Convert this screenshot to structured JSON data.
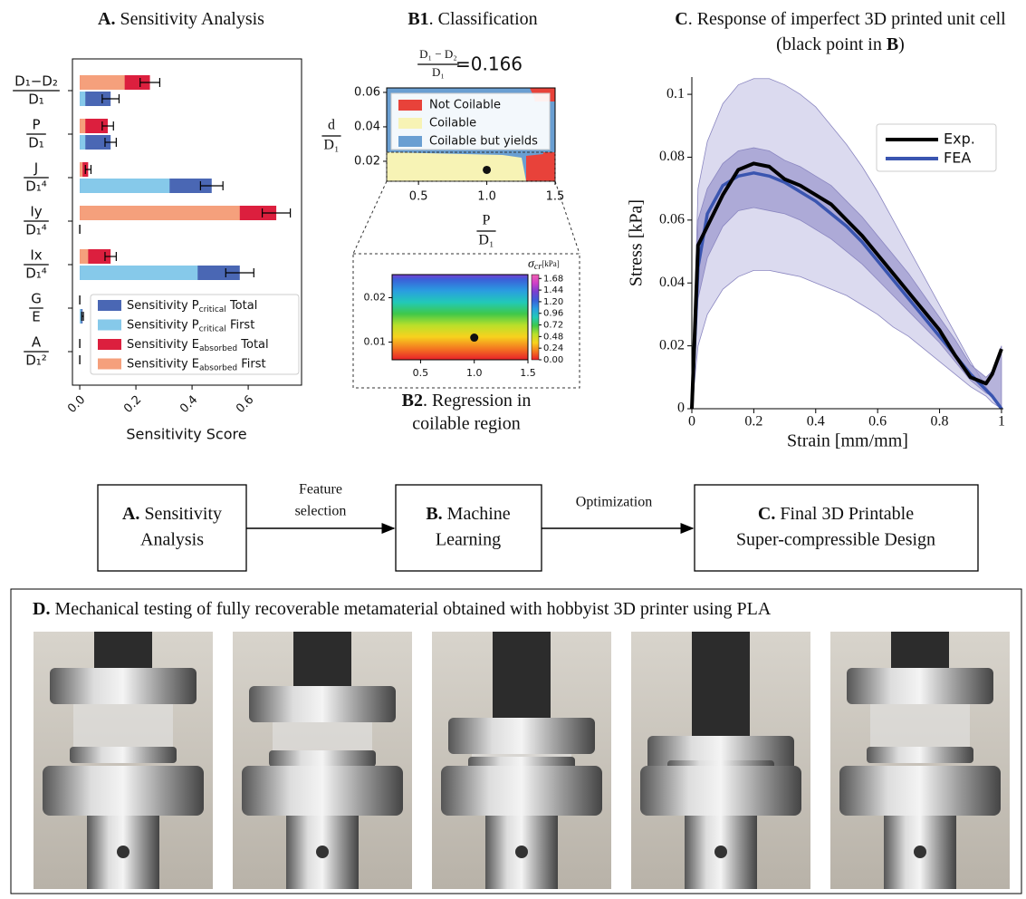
{
  "chart_data": [
    {
      "type": "hbar_overlay",
      "title_label": "A.",
      "title": "Sensitivity Analysis",
      "categories": [
        {
          "num": "D₁−D₂",
          "den": "D₁"
        },
        {
          "num": "P",
          "den": "D₁"
        },
        {
          "num": "J",
          "den": "D₁⁴"
        },
        {
          "num": "Iy",
          "den": "D₁⁴"
        },
        {
          "num": "Ix",
          "den": "D₁⁴"
        },
        {
          "num": "G",
          "den": "E"
        },
        {
          "num": "A",
          "den": "D₁²"
        }
      ],
      "series": [
        {
          "name": [
            "Sensitivity P",
            "critical",
            " Total"
          ],
          "color": "#4a67b4",
          "group": "P",
          "values": [
            0.11,
            0.11,
            0.47,
            0.0,
            0.57,
            0.01,
            0.0
          ],
          "errors": [
            0.03,
            0.02,
            0.04,
            0.0,
            0.05,
            0.003,
            0.0
          ]
        },
        {
          "name": [
            "Sensitivity P",
            "critical",
            " First"
          ],
          "color": "#86c9ea",
          "group": "P",
          "values": [
            0.02,
            0.02,
            0.32,
            0.0,
            0.42,
            0.005,
            0.0
          ]
        },
        {
          "name": [
            "Sensitivity E",
            "absorbed",
            " Total"
          ],
          "color": "#dc1f3e",
          "group": "E",
          "values": [
            0.25,
            0.1,
            0.03,
            0.7,
            0.11,
            0.0,
            0.0
          ],
          "errors": [
            0.035,
            0.02,
            0.01,
            0.05,
            0.02,
            0.0,
            0.0
          ]
        },
        {
          "name": [
            "Sensitivity E",
            "absorbed",
            " First"
          ],
          "color": "#f5a07c",
          "group": "E",
          "values": [
            0.16,
            0.02,
            0.01,
            0.57,
            0.03,
            0.0,
            0.0
          ]
        }
      ],
      "xlabel": "Sensitivity Score",
      "xlim": [
        -0.026,
        0.79
      ],
      "xticks": [
        {
          "value": 0,
          "label": "0.0"
        },
        0.2,
        0.4,
        0.6
      ]
    },
    {
      "type": "region_map",
      "title_label": "B1",
      "title": ". Classification",
      "formula": {
        "num": "D₁ − D₂",
        "den": "D₁",
        "rhs": "=0.166"
      },
      "xlabel": {
        "num": "P",
        "den": "D₁"
      },
      "ylabel": {
        "num": "d",
        "den": "D₁"
      },
      "xlim": [
        0.267,
        1.5
      ],
      "ylim": [
        0.0084,
        0.0626
      ],
      "xticks": [
        0.5,
        {
          "value": 1,
          "label": "1.0"
        },
        1.5
      ],
      "yticks": [
        0.02,
        0.04,
        0.06
      ],
      "legend": [
        {
          "name": "Not Coilable",
          "color": "#e8423a"
        },
        {
          "name": "Coilable",
          "color": "#f7f3b5"
        },
        {
          "name": "Coilable but yields",
          "color": "#6a9fd2"
        }
      ],
      "point": {
        "x": 1.0,
        "y": 0.015
      }
    },
    {
      "type": "heatmap",
      "caption_label": "B2",
      "caption": ". Regression in",
      "caption2": "coilable region",
      "xlim": [
        0.235,
        1.5
      ],
      "ylim": [
        0.006,
        0.0252
      ],
      "xticks": [
        0.5,
        {
          "value": 1,
          "label": "1.0"
        },
        1.5
      ],
      "yticks": [
        0.01,
        0.02
      ],
      "point": {
        "x": 1.0,
        "y": 0.011
      },
      "colorbar": {
        "title": "σ",
        "title_sub": "cr",
        "unit": "[kPa]",
        "lim": [
          0,
          1.76
        ],
        "ticks": [
          {
            "value": 0,
            "label": "0.00"
          },
          {
            "value": 0.24,
            "label": "0.24"
          },
          {
            "value": 0.48,
            "label": "0.48"
          },
          {
            "value": 0.72,
            "label": "0.72"
          },
          {
            "value": 0.96,
            "label": "0.96"
          },
          {
            "value": 1.2,
            "label": "1.20"
          },
          {
            "value": 1.44,
            "label": "1.44"
          },
          {
            "value": 1.68,
            "label": "1.68"
          }
        ],
        "colors": [
          "#e8202a",
          "#f47a20",
          "#f7d21e",
          "#b9e02a",
          "#3fc84a",
          "#22c9b8",
          "#2a9de0",
          "#3b5fd8",
          "#7a3fd0",
          "#d040c8",
          "#f060b0"
        ]
      }
    },
    {
      "type": "line",
      "title_label": "C",
      "title": ". Response of imperfect 3D printed unit cell",
      "title2": [
        "(black point in ",
        "B",
        ")"
      ],
      "xlabel": "Strain [mm/mm]",
      "ylabel": "Stress [kPa]",
      "xlim": [
        0,
        1.006
      ],
      "ylim": [
        0,
        0.1055
      ],
      "xticks": [
        0,
        0.2,
        0.4,
        0.6,
        0.8,
        1
      ],
      "yticks": [
        0,
        0.02,
        0.04,
        0.06,
        0.08,
        0.1
      ],
      "x": [
        0,
        0.02,
        0.05,
        0.1,
        0.15,
        0.2,
        0.25,
        0.3,
        0.35,
        0.4,
        0.45,
        0.5,
        0.55,
        0.6,
        0.65,
        0.7,
        0.75,
        0.8,
        0.85,
        0.9,
        0.95,
        0.97,
        1.0
      ],
      "bands": [
        {
          "color": "#cfcdea",
          "upper": [
            0,
            0.07,
            0.085,
            0.097,
            0.103,
            0.105,
            0.105,
            0.103,
            0.1,
            0.096,
            0.09,
            0.084,
            0.077,
            0.069,
            0.06,
            0.051,
            0.042,
            0.033,
            0.024,
            0.015,
            0.007,
            0.004,
            0
          ],
          "lower": [
            0,
            0.02,
            0.03,
            0.038,
            0.042,
            0.044,
            0.044,
            0.043,
            0.042,
            0.04,
            0.038,
            0.036,
            0.033,
            0.03,
            0.026,
            0.023,
            0.019,
            0.015,
            0.011,
            0.007,
            0.004,
            0.002,
            0
          ]
        },
        {
          "color": "#9d99cf",
          "upper": [
            0,
            0.06,
            0.07,
            0.078,
            0.082,
            0.083,
            0.082,
            0.079,
            0.077,
            0.074,
            0.071,
            0.066,
            0.061,
            0.055,
            0.049,
            0.043,
            0.036,
            0.029,
            0.022,
            0.014,
            0.01,
            0.012,
            0.02
          ],
          "lower": [
            0,
            0.035,
            0.048,
            0.058,
            0.063,
            0.064,
            0.063,
            0.062,
            0.06,
            0.057,
            0.054,
            0.05,
            0.046,
            0.041,
            0.036,
            0.031,
            0.026,
            0.021,
            0.015,
            0.009,
            0.005,
            0.004,
            0
          ]
        }
      ],
      "series": [
        {
          "name": "Exp.",
          "color": "#000000",
          "values": [
            0,
            0.052,
            0.058,
            0.068,
            0.076,
            0.078,
            0.077,
            0.073,
            0.071,
            0.068,
            0.065,
            0.06,
            0.055,
            0.049,
            0.043,
            0.037,
            0.031,
            0.025,
            0.017,
            0.01,
            0.008,
            0.011,
            0.019
          ]
        },
        {
          "name": "FEA",
          "color": "#3a55b0",
          "values": [
            0,
            0.045,
            0.062,
            0.071,
            0.074,
            0.075,
            0.074,
            0.072,
            0.069,
            0.066,
            0.062,
            0.058,
            0.053,
            0.047,
            0.041,
            0.035,
            0.029,
            0.023,
            0.017,
            0.011,
            0.006,
            0.004,
            0
          ]
        }
      ]
    }
  ],
  "flow": {
    "boxes": [
      {
        "label": "A.",
        "line1": " Sensitivity",
        "line2": "Analysis"
      },
      {
        "label": "B.",
        "line1": " Machine",
        "line2": "Learning"
      },
      {
        "label": "C.",
        "line1": " Final 3D Printable",
        "line2": "Super-compressible Design"
      }
    ],
    "arrows": [
      [
        "Feature",
        "selection"
      ],
      [
        "Optimization"
      ]
    ]
  },
  "panel_d": {
    "label": "D.",
    "title": " Mechanical testing of fully recoverable metamaterial obtained with hobbyist 3D printer using PLA"
  }
}
